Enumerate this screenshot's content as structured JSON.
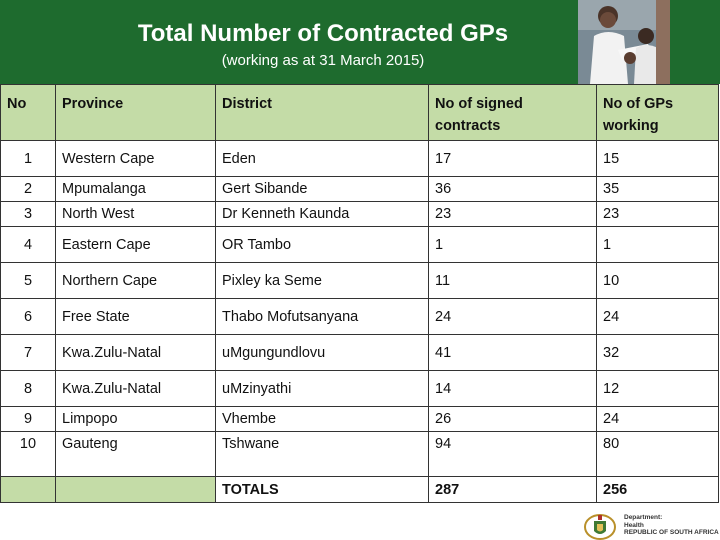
{
  "header": {
    "title": "Total Number of Contracted GPs",
    "subtitle": "(working as at 31 March 2015)"
  },
  "table": {
    "columns": [
      "No",
      "Province",
      "District",
      "No of signed contracts",
      "No of GPs working"
    ],
    "rows": [
      {
        "no": "1",
        "province": "Western Cape",
        "district": "Eden",
        "signed": "17",
        "working": "15"
      },
      {
        "no": "2",
        "province": "Mpumalanga",
        "district": "Gert Sibande",
        "signed": "36",
        "working": "35"
      },
      {
        "no": "3",
        "province": "North West",
        "district": "Dr Kenneth Kaunda",
        "signed": "23",
        "working": "23"
      },
      {
        "no": "4",
        "province": "Eastern Cape",
        "district": "OR Tambo",
        "signed": "1",
        "working": "1"
      },
      {
        "no": "5",
        "province": "Northern Cape",
        "district": "Pixley ka Seme",
        "signed": "11",
        "working": "10"
      },
      {
        "no": "6",
        "province": "Free State",
        "district": "Thabo Mofutsanyana",
        "signed": "24",
        "working": "24"
      },
      {
        "no": "7",
        "province": "Kwa.Zulu-Natal",
        "district": "uMgungundlovu",
        "signed": "41",
        "working": "32"
      },
      {
        "no": "8",
        "province": "Kwa.Zulu-Natal",
        "district": "uMzinyathi",
        "signed": "14",
        "working": "12"
      },
      {
        "no": "9",
        "province": "Limpopo",
        "district": "Vhembe",
        "signed": "26",
        "working": "24"
      },
      {
        "no": "10",
        "province": "Gauteng",
        "district": "Tshwane",
        "signed": "94",
        "working": "80"
      }
    ],
    "totals": {
      "label": "TOTALS",
      "signed": "287",
      "working": "256"
    }
  },
  "footer": {
    "dept_line1": "Department:",
    "dept_line2": "Health",
    "dept_line3": "REPUBLIC OF SOUTH AFRICA"
  },
  "colors": {
    "header_green": "#1e6b2e",
    "table_header_green": "#c4dca7"
  }
}
